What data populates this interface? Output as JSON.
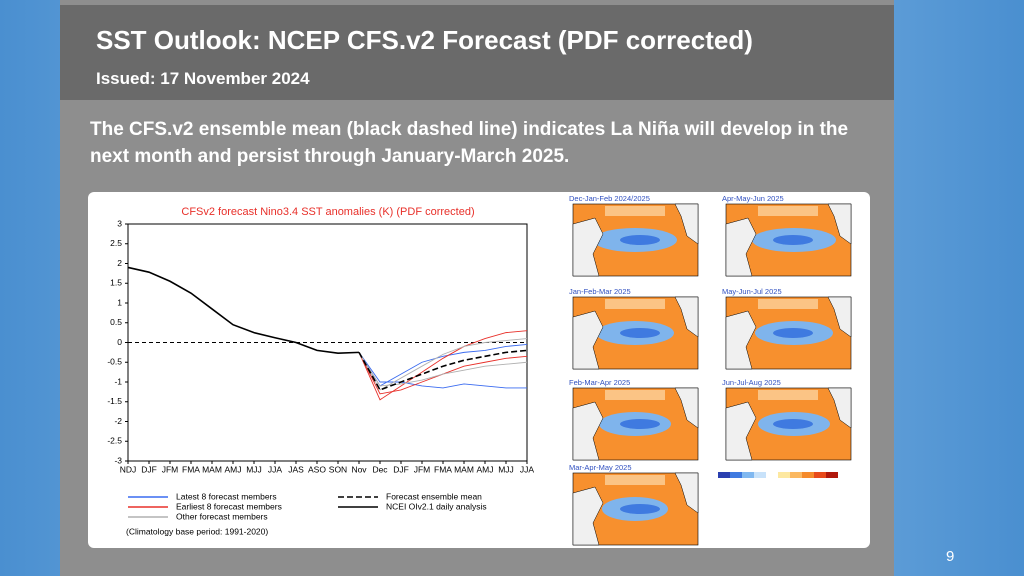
{
  "header": {
    "title": "SST Outlook: NCEP CFS.v2 Forecast (PDF corrected)",
    "subtitle": "Issued: 17 November 2024"
  },
  "body_text": "The CFS.v2 ensemble mean (black dashed line) indicates La Niña will develop in the next month and persist through January-March 2025.",
  "chart_data": {
    "type": "line",
    "title": "CFSv2 forecast Nino3.4 SST anomalies (K) (PDF corrected)",
    "categories": [
      "NDJ",
      "DJF",
      "JFM",
      "FMA",
      "MAM",
      "AMJ",
      "MJJ",
      "JJA",
      "JAS",
      "ASO",
      "SON",
      "Nov",
      "Dec",
      "DJF",
      "JFM",
      "FMA",
      "MAM",
      "AMJ",
      "MJJ",
      "JJA"
    ],
    "ylim": [
      -3,
      3
    ],
    "yticks": [
      3,
      2.5,
      2,
      1.5,
      1,
      0.5,
      0,
      -0.5,
      -1,
      -1.5,
      -2,
      -2.5,
      -3
    ],
    "series": [
      {
        "name": "Latest 8 forecast members",
        "color": "#3a6bf0",
        "members": [
          [
            null,
            null,
            null,
            null,
            null,
            null,
            null,
            null,
            null,
            null,
            null,
            -0.25,
            -1.0,
            -1.0,
            -1.1,
            -1.15,
            -1.05,
            -1.1,
            -1.15,
            -1.15
          ],
          [
            null,
            null,
            null,
            null,
            null,
            null,
            null,
            null,
            null,
            null,
            null,
            -0.25,
            -1.1,
            -0.8,
            -0.5,
            -0.35,
            -0.25,
            -0.2,
            -0.1,
            -0.05
          ]
        ]
      },
      {
        "name": "Earliest 8 forecast members",
        "color": "#e8302a",
        "members": [
          [
            null,
            null,
            null,
            null,
            null,
            null,
            null,
            null,
            null,
            null,
            null,
            -0.25,
            -1.45,
            -1.1,
            -0.75,
            -0.4,
            -0.1,
            0.1,
            0.25,
            0.3
          ],
          [
            null,
            null,
            null,
            null,
            null,
            null,
            null,
            null,
            null,
            null,
            null,
            -0.25,
            -1.3,
            -1.2,
            -1.0,
            -0.8,
            -0.6,
            -0.5,
            -0.4,
            -0.35
          ]
        ]
      },
      {
        "name": "Other forecast members",
        "color": "#b0b0b0",
        "members": [
          [
            null,
            null,
            null,
            null,
            null,
            null,
            null,
            null,
            null,
            null,
            null,
            -0.25,
            -1.2,
            -0.9,
            -0.6,
            -0.3,
            -0.1,
            0,
            0.05,
            0.1
          ],
          [
            null,
            null,
            null,
            null,
            null,
            null,
            null,
            null,
            null,
            null,
            null,
            -0.25,
            -1.1,
            -1.05,
            -0.95,
            -0.8,
            -0.7,
            -0.6,
            -0.55,
            -0.5
          ]
        ]
      },
      {
        "name": "Forecast ensemble mean",
        "color": "#000000",
        "dash": true,
        "values": [
          null,
          null,
          null,
          null,
          null,
          null,
          null,
          null,
          null,
          null,
          null,
          -0.25,
          -1.2,
          -1.0,
          -0.8,
          -0.6,
          -0.45,
          -0.35,
          -0.25,
          -0.2
        ]
      },
      {
        "name": "NCEI OIv2.1 daily analysis",
        "color": "#000000",
        "values": [
          1.9,
          1.78,
          1.55,
          1.25,
          0.85,
          0.45,
          0.25,
          0.12,
          0,
          -0.2,
          -0.27,
          -0.25,
          null,
          null,
          null,
          null,
          null,
          null,
          null,
          null
        ]
      }
    ],
    "note": "(Climatology base period: 1991-2020)"
  },
  "maps": [
    "Dec-Jan-Feb 2024/2025",
    "Apr-May-Jun 2025",
    "Jan-Feb-Mar 2025",
    "May-Jun-Jul 2025",
    "Feb-Mar-Apr 2025",
    "Jun-Jul-Aug 2025",
    "Mar-Apr-May 2025"
  ],
  "page_number": "9"
}
